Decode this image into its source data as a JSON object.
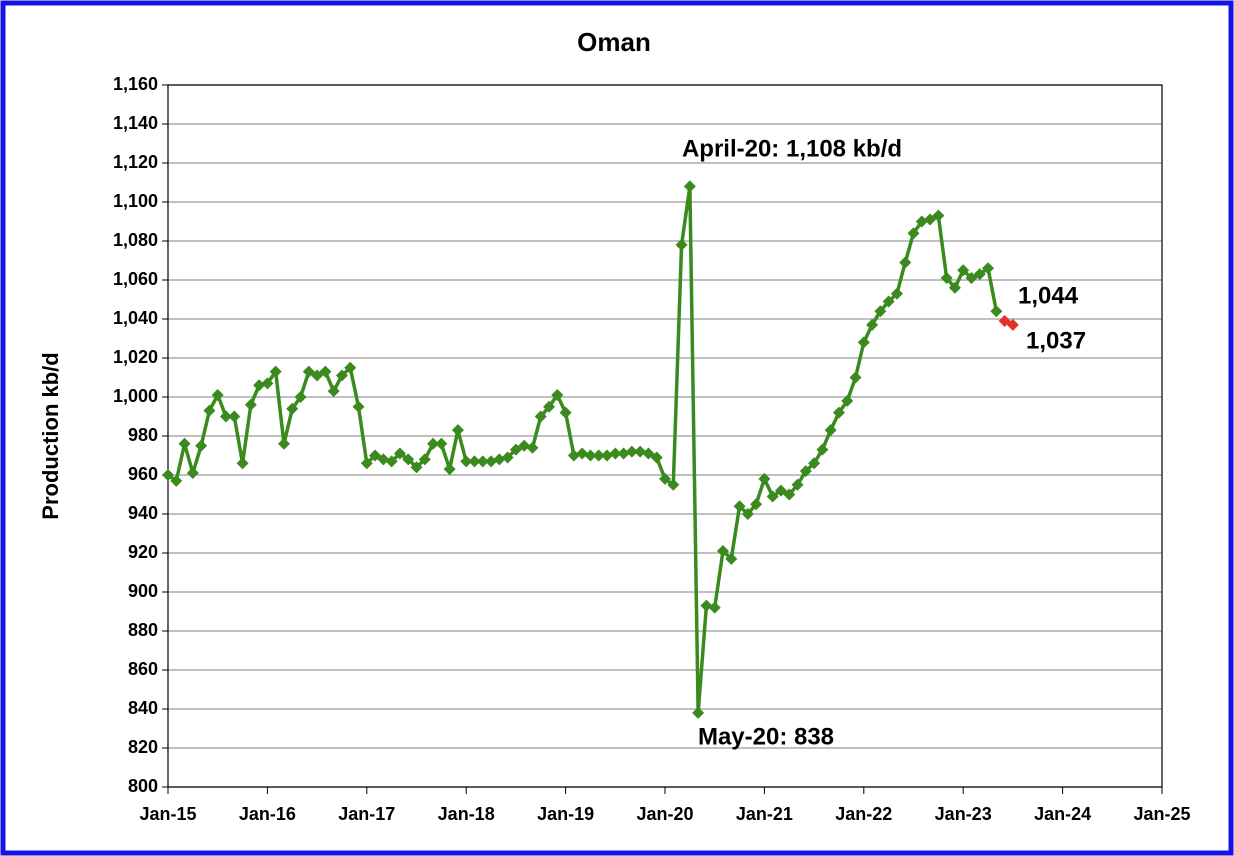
{
  "chart_data": {
    "type": "line",
    "title": "Oman",
    "ylabel": "Production kb/d",
    "x": [
      "2015-01",
      "2015-02",
      "2015-03",
      "2015-04",
      "2015-05",
      "2015-06",
      "2015-07",
      "2015-08",
      "2015-09",
      "2015-10",
      "2015-11",
      "2015-12",
      "2016-01",
      "2016-02",
      "2016-03",
      "2016-04",
      "2016-05",
      "2016-06",
      "2016-07",
      "2016-08",
      "2016-09",
      "2016-10",
      "2016-11",
      "2016-12",
      "2017-01",
      "2017-02",
      "2017-03",
      "2017-04",
      "2017-05",
      "2017-06",
      "2017-07",
      "2017-08",
      "2017-09",
      "2017-10",
      "2017-11",
      "2017-12",
      "2018-01",
      "2018-02",
      "2018-03",
      "2018-04",
      "2018-05",
      "2018-06",
      "2018-07",
      "2018-08",
      "2018-09",
      "2018-10",
      "2018-11",
      "2018-12",
      "2019-01",
      "2019-02",
      "2019-03",
      "2019-04",
      "2019-05",
      "2019-06",
      "2019-07",
      "2019-08",
      "2019-09",
      "2019-10",
      "2019-11",
      "2019-12",
      "2020-01",
      "2020-02",
      "2020-03",
      "2020-04",
      "2020-05",
      "2020-06",
      "2020-07",
      "2020-08",
      "2020-09",
      "2020-10",
      "2020-11",
      "2020-12",
      "2021-01",
      "2021-02",
      "2021-03",
      "2021-04",
      "2021-05",
      "2021-06",
      "2021-07",
      "2021-08",
      "2021-09",
      "2021-10",
      "2021-11",
      "2021-12",
      "2022-01",
      "2022-02",
      "2022-03",
      "2022-04",
      "2022-05",
      "2022-06",
      "2022-07",
      "2022-08",
      "2022-09",
      "2022-10",
      "2022-11",
      "2022-12",
      "2023-01",
      "2023-02",
      "2023-03",
      "2023-04",
      "2023-05",
      "2023-06",
      "2023-07"
    ],
    "series": [
      {
        "color": "#3a8a1e",
        "values": [
          960,
          957,
          976,
          961,
          975,
          993,
          1001,
          990,
          990,
          966,
          996,
          1006,
          1007,
          1013,
          976,
          994,
          1000,
          1013,
          1011,
          1013,
          1003,
          1011,
          1015,
          995,
          966,
          970,
          968,
          967,
          971,
          968,
          964,
          968,
          976,
          976,
          963,
          983,
          967,
          967,
          967,
          967,
          968,
          969,
          973,
          975,
          974,
          990,
          995,
          1001,
          992,
          970,
          971,
          970,
          970,
          970,
          971,
          971,
          972,
          972,
          971,
          969,
          958,
          955,
          1078,
          1108,
          838,
          893,
          892,
          921,
          917,
          944,
          940,
          945,
          958,
          949,
          952,
          950,
          955,
          962,
          966,
          973,
          983,
          992,
          998,
          1010,
          1028,
          1037,
          1044,
          1049,
          1053,
          1069,
          1084,
          1090,
          1091,
          1093,
          1061,
          1056,
          1065,
          1061,
          1063,
          1066,
          1044,
          null,
          null
        ]
      },
      {
        "color": "#e8302a",
        "values": [
          null,
          null,
          null,
          null,
          null,
          null,
          null,
          null,
          null,
          null,
          null,
          null,
          null,
          null,
          null,
          null,
          null,
          null,
          null,
          null,
          null,
          null,
          null,
          null,
          null,
          null,
          null,
          null,
          null,
          null,
          null,
          null,
          null,
          null,
          null,
          null,
          null,
          null,
          null,
          null,
          null,
          null,
          null,
          null,
          null,
          null,
          null,
          null,
          null,
          null,
          null,
          null,
          null,
          null,
          null,
          null,
          null,
          null,
          null,
          null,
          null,
          null,
          null,
          null,
          null,
          null,
          null,
          null,
          null,
          null,
          null,
          null,
          null,
          null,
          null,
          null,
          null,
          null,
          null,
          null,
          null,
          null,
          null,
          null,
          null,
          null,
          null,
          null,
          null,
          null,
          null,
          null,
          null,
          null,
          null,
          null,
          null,
          null,
          null,
          null,
          null,
          1039,
          1037
        ]
      }
    ],
    "xlim": [
      "2015-01",
      "2025-01"
    ],
    "xticks": [
      {
        "value": "2015-01",
        "label": "Jan-15"
      },
      {
        "value": "2016-01",
        "label": "Jan-16"
      },
      {
        "value": "2017-01",
        "label": "Jan-17"
      },
      {
        "value": "2018-01",
        "label": "Jan-18"
      },
      {
        "value": "2019-01",
        "label": "Jan-19"
      },
      {
        "value": "2020-01",
        "label": "Jan-20"
      },
      {
        "value": "2021-01",
        "label": "Jan-21"
      },
      {
        "value": "2022-01",
        "label": "Jan-22"
      },
      {
        "value": "2023-01",
        "label": "Jan-23"
      },
      {
        "value": "2024-01",
        "label": "Jan-24"
      },
      {
        "value": "2025-01",
        "label": "Jan-25"
      }
    ],
    "ylim": [
      800,
      1160
    ],
    "yticks": [
      800,
      820,
      840,
      860,
      880,
      900,
      920,
      940,
      960,
      980,
      {
        "value": 1000,
        "label": "1,000"
      },
      {
        "value": 1020,
        "label": "1,020"
      },
      {
        "value": 1040,
        "label": "1,040"
      },
      {
        "value": 1060,
        "label": "1,060"
      },
      {
        "value": 1080,
        "label": "1,080"
      },
      {
        "value": 1100,
        "label": "1,100"
      },
      {
        "value": 1120,
        "label": "1,120"
      },
      {
        "value": 1140,
        "label": "1,140"
      },
      {
        "value": 1160,
        "label": "1,160"
      }
    ],
    "grid": true,
    "annotations": [
      "April-20: 1,108 kb/d",
      "May-20: 838",
      "1,044",
      "1,037"
    ]
  }
}
